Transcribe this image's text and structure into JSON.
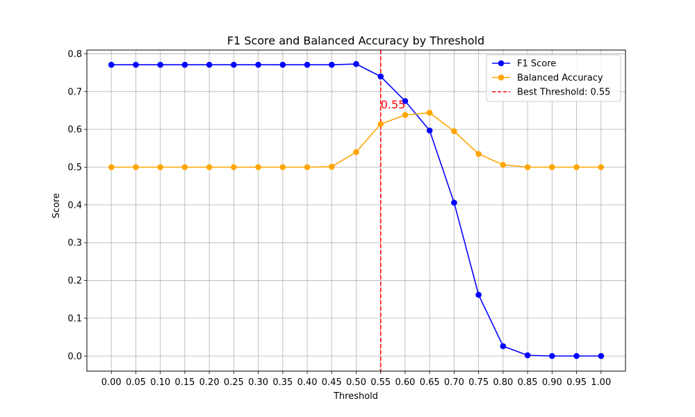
{
  "chart_data": {
    "type": "line",
    "title": "F1 Score and Balanced Accuracy by Threshold",
    "xlabel": "Threshold",
    "ylabel": "Score",
    "x": [
      0.0,
      0.05,
      0.1,
      0.15,
      0.2,
      0.25,
      0.3,
      0.35,
      0.4,
      0.45,
      0.5,
      0.55,
      0.6,
      0.65,
      0.7,
      0.75,
      0.8,
      0.85,
      0.9,
      0.95,
      1.0
    ],
    "x_tick_labels": [
      "0.00",
      "0.05",
      "0.10",
      "0.15",
      "0.20",
      "0.25",
      "0.30",
      "0.35",
      "0.40",
      "0.45",
      "0.50",
      "0.55",
      "0.60",
      "0.65",
      "0.70",
      "0.75",
      "0.80",
      "0.85",
      "0.90",
      "0.95",
      "1.00"
    ],
    "y_ticks": [
      0.0,
      0.1,
      0.2,
      0.3,
      0.4,
      0.5,
      0.6,
      0.7,
      0.8
    ],
    "y_tick_labels": [
      "0.0",
      "0.1",
      "0.2",
      "0.3",
      "0.4",
      "0.5",
      "0.6",
      "0.7",
      "0.8"
    ],
    "xlim": [
      -0.05,
      1.05
    ],
    "ylim": [
      -0.04,
      0.81
    ],
    "grid": true,
    "legend_position": "top-right",
    "series": [
      {
        "name": "F1 Score",
        "color": "#0000ff",
        "values": [
          0.771,
          0.771,
          0.771,
          0.771,
          0.771,
          0.771,
          0.771,
          0.771,
          0.771,
          0.771,
          0.773,
          0.74,
          0.675,
          0.597,
          0.406,
          0.162,
          0.026,
          0.002,
          0.0,
          0.0,
          0.0
        ]
      },
      {
        "name": "Balanced Accuracy",
        "color": "#ffa500",
        "values": [
          0.5,
          0.5,
          0.5,
          0.5,
          0.5,
          0.5,
          0.5,
          0.5,
          0.5,
          0.501,
          0.54,
          0.614,
          0.638,
          0.644,
          0.595,
          0.535,
          0.506,
          0.5,
          0.5,
          0.5,
          0.5
        ]
      }
    ],
    "best_threshold": {
      "value": 0.55,
      "color": "#ff0000",
      "legend_label": "Best Threshold: 0.55",
      "annotation_text": "0.55",
      "annotation_y": 0.655
    }
  }
}
